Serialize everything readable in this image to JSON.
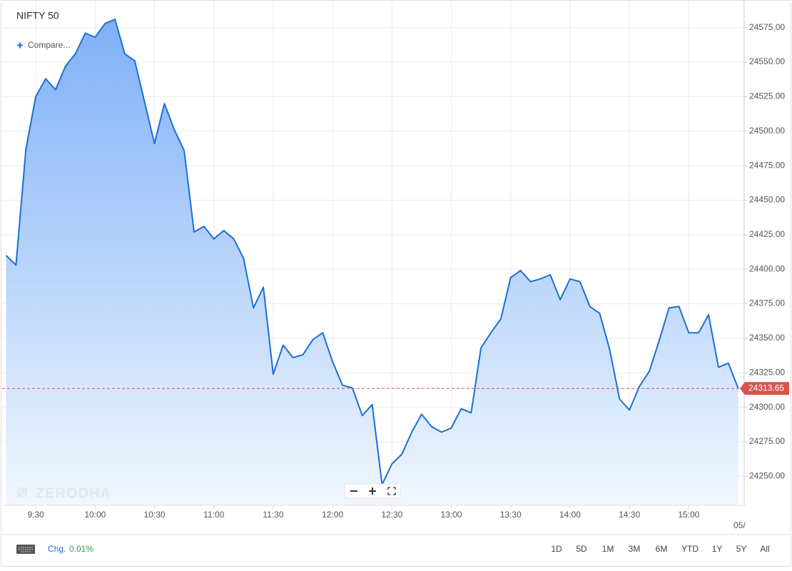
{
  "chart_data": {
    "type": "area",
    "title": "NIFTY 50",
    "compare": "Compare...",
    "watermark": "ZERODHA",
    "x": [
      "9:15",
      "9:20",
      "9:25",
      "9:30",
      "9:35",
      "9:40",
      "9:45",
      "9:50",
      "9:55",
      "10:00",
      "10:05",
      "10:10",
      "10:15",
      "10:20",
      "10:25",
      "10:30",
      "10:35",
      "10:40",
      "10:45",
      "10:50",
      "10:55",
      "11:00",
      "11:05",
      "11:10",
      "11:15",
      "11:20",
      "11:25",
      "11:30",
      "11:35",
      "11:40",
      "11:45",
      "11:50",
      "11:55",
      "12:00",
      "12:05",
      "12:10",
      "12:15",
      "12:20",
      "12:25",
      "12:30",
      "12:35",
      "12:40",
      "12:45",
      "12:50",
      "12:55",
      "13:00",
      "13:05",
      "13:10",
      "13:15",
      "13:20",
      "13:25",
      "13:30",
      "13:35",
      "13:40",
      "13:45",
      "13:50",
      "13:55",
      "14:00",
      "14:05",
      "14:10",
      "14:15",
      "14:20",
      "14:25",
      "14:30",
      "14:35",
      "14:40",
      "14:45",
      "14:50",
      "14:55",
      "15:00",
      "15:05",
      "15:10",
      "15:15",
      "15:20",
      "15:25"
    ],
    "series": [
      {
        "name": "NIFTY 50",
        "color": "#1a6fd6",
        "values": [
          24410,
          24403,
          24487,
          24525,
          24538,
          24530,
          24547,
          24556,
          24571,
          24568,
          24578,
          24581,
          24556,
          24551,
          24521,
          24491,
          24520,
          24501,
          24486,
          24427,
          24431,
          24422,
          24428,
          24422,
          24408,
          24372,
          24387,
          24324,
          24345,
          24336,
          24338,
          24349,
          24354,
          24333,
          24316,
          24314,
          24294,
          24302,
          24244,
          24259,
          24266,
          24282,
          24295,
          24286,
          24282,
          24285,
          24299,
          24296,
          24343,
          24354,
          24364,
          24394,
          24399,
          24391,
          24393,
          24396,
          24378,
          24393,
          24391,
          24373,
          24368,
          24342,
          24306,
          24298,
          24315,
          24326,
          24348,
          24372,
          24373,
          24354,
          24354,
          24367,
          24329,
          24332,
          24313.65
        ]
      }
    ],
    "xlim": [
      "9:13",
      "15:28"
    ],
    "xticks": [
      "9:30",
      "10:00",
      "10:30",
      "11:00",
      "11:30",
      "12:00",
      "12:30",
      "13:00",
      "13:30",
      "14:00",
      "14:30",
      "15:00"
    ],
    "x_edge_label": "05/",
    "ylim": [
      24229,
      24595
    ],
    "yticks": [
      {
        "value": 24250,
        "label": "24250.00"
      },
      {
        "value": 24275,
        "label": "24275.00"
      },
      {
        "value": 24300,
        "label": "24300.00"
      },
      {
        "value": 24325,
        "label": "24325.00"
      },
      {
        "value": 24350,
        "label": "24350.00"
      },
      {
        "value": 24375,
        "label": "24375.00"
      },
      {
        "value": 24400,
        "label": "24400.00"
      },
      {
        "value": 24425,
        "label": "24425.00"
      },
      {
        "value": 24450,
        "label": "24450.00"
      },
      {
        "value": 24475,
        "label": "24475.00"
      },
      {
        "value": 24500,
        "label": "24500.00"
      },
      {
        "value": 24525,
        "label": "24525.00"
      },
      {
        "value": 24550,
        "label": "24550.00"
      },
      {
        "value": 24575,
        "label": "24575.00"
      }
    ],
    "last_price": 24313.65,
    "grid": true,
    "fill_top": "#7fb0f8",
    "fill_bottom": "#f1f7fe",
    "last_price_color": "#d9534f"
  },
  "toolbar": {
    "change_label": "Chg.",
    "change_value": "0.01%",
    "ranges": [
      "1D",
      "5D",
      "1M",
      "3M",
      "6M",
      "YTD",
      "1Y",
      "5Y",
      "All"
    ]
  }
}
